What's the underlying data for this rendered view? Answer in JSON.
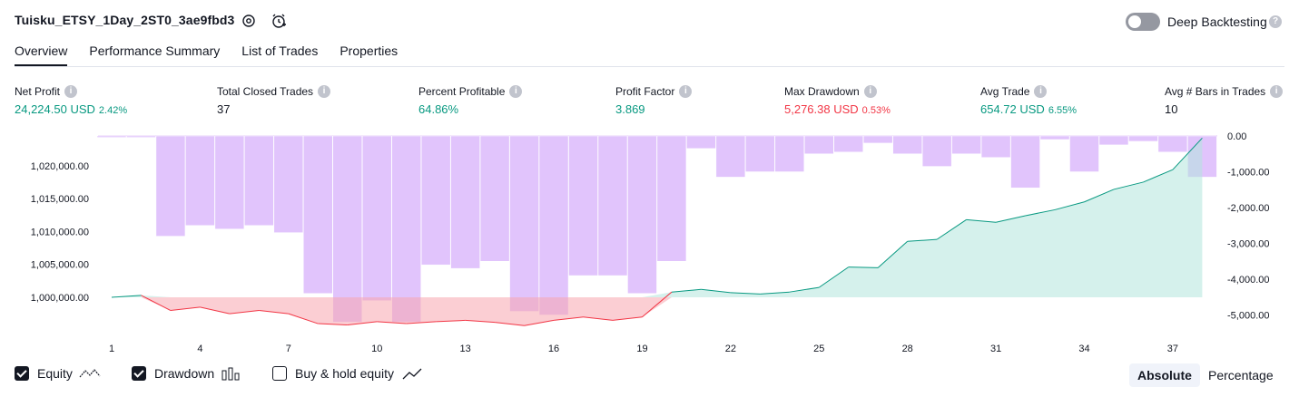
{
  "header": {
    "strategy_title": "Tuisku_ETSY_1Day_2ST0_3ae9fbd3",
    "deep_backtesting_label": "Deep Backtesting",
    "deep_backtesting_on": false
  },
  "tabs": [
    {
      "label": "Overview",
      "active": true
    },
    {
      "label": "Performance Summary",
      "active": false
    },
    {
      "label": "List of Trades",
      "active": false
    },
    {
      "label": "Properties",
      "active": false
    }
  ],
  "metrics": [
    {
      "label": "Net Profit",
      "value": "24,224.50 USD",
      "pct": "2.42%",
      "color": "#089981"
    },
    {
      "label": "Total Closed Trades",
      "value": "37",
      "pct": "",
      "color": "#131722"
    },
    {
      "label": "Percent Profitable",
      "value": "64.86%",
      "pct": "",
      "color": "#089981"
    },
    {
      "label": "Profit Factor",
      "value": "3.869",
      "pct": "",
      "color": "#089981"
    },
    {
      "label": "Max Drawdown",
      "value": "5,276.38 USD",
      "pct": "0.53%",
      "color": "#f23645"
    },
    {
      "label": "Avg Trade",
      "value": "654.72 USD",
      "pct": "6.55%",
      "color": "#089981"
    },
    {
      "label": "Avg # Bars in Trades",
      "value": "10",
      "pct": "",
      "color": "#131722"
    }
  ],
  "chart_data": {
    "type": "bar",
    "x_ticks": [
      1,
      4,
      7,
      10,
      13,
      16,
      19,
      22,
      25,
      28,
      31,
      34,
      37
    ],
    "left_axis": {
      "ticks": [
        1000000,
        1005000,
        1010000,
        1015000,
        1020000
      ],
      "labels": [
        "1,000,000.00",
        "1,005,000.00",
        "1,010,000.00",
        "1,015,000.00",
        "1,020,000.00"
      ],
      "range": [
        995700,
        1023900
      ]
    },
    "right_axis": {
      "ticks": [
        0,
        -1000,
        -2000,
        -3000,
        -4000,
        -5000
      ],
      "labels": [
        "0.00",
        "-1,000.00",
        "-2,000.00",
        "-3,000.00",
        "-4,000.00",
        "-5,000.00"
      ],
      "range": [
        -5500,
        0
      ]
    },
    "equity": {
      "x": [
        1,
        2,
        3,
        4,
        5,
        6,
        7,
        8,
        9,
        10,
        11,
        12,
        13,
        14,
        15,
        16,
        17,
        18,
        19,
        20,
        21,
        22,
        23,
        24,
        25,
        26,
        27,
        28,
        29,
        30,
        31,
        32,
        33,
        34,
        35,
        36,
        37,
        38
      ],
      "values": [
        1000000,
        1000300,
        998000,
        998500,
        997500,
        998000,
        997500,
        996000,
        995800,
        996300,
        996000,
        996300,
        996500,
        996200,
        995700,
        996500,
        997000,
        996500,
        997000,
        1000800,
        1001200,
        1000700,
        1000500,
        1000800,
        1001500,
        1004600,
        1004500,
        1008500,
        1008800,
        1011800,
        1011400,
        1012400,
        1013300,
        1014500,
        1016400,
        1017500,
        1019400,
        1024200
      ]
    },
    "drawdown_bars": {
      "x": [
        1,
        2,
        3,
        4,
        5,
        6,
        7,
        8,
        9,
        10,
        11,
        12,
        13,
        14,
        15,
        16,
        17,
        18,
        19,
        20,
        21,
        22,
        23,
        24,
        25,
        26,
        27,
        28,
        29,
        30,
        31,
        32,
        33,
        34,
        35,
        36,
        37,
        38
      ],
      "values": [
        -40,
        -40,
        -2800,
        -2500,
        -2600,
        -2500,
        -2700,
        -4400,
        -5200,
        -4600,
        -5200,
        -3600,
        -3700,
        -3500,
        -4900,
        -5000,
        -3900,
        -3900,
        -4400,
        -3500,
        -350,
        -1150,
        -1000,
        -1000,
        -500,
        -450,
        -200,
        -500,
        -850,
        -500,
        -600,
        -1450,
        -100,
        -1000,
        -250,
        -150,
        -450,
        -1150
      ]
    },
    "legend": [
      {
        "label": "Equity",
        "checked": true
      },
      {
        "label": "Drawdown",
        "checked": true
      },
      {
        "label": "Buy & hold equity",
        "checked": false
      }
    ]
  },
  "view_toggle": {
    "absolute_label": "Absolute",
    "percentage_label": "Percentage",
    "selected": "Absolute"
  },
  "colors": {
    "equity_line": "#089981",
    "equity_fill": "#b2e6dc",
    "drawdown_fill": "#f7a6ae",
    "drawdown_line": "#f23645",
    "bar": "#e1c4fc"
  }
}
